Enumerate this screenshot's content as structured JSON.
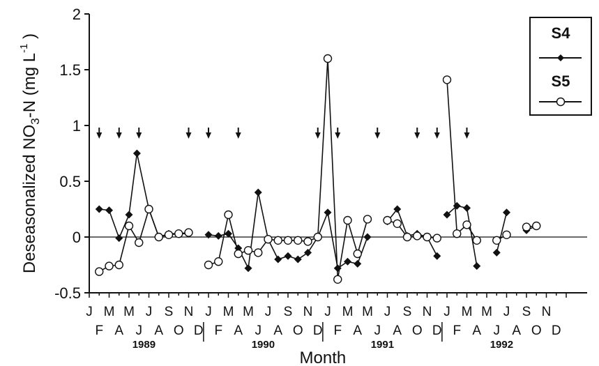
{
  "chart_data": {
    "type": "line",
    "ylabel_main": "Deseasonalized NO",
    "ylabel_sub": "3",
    "ylabel_rest": "-N (mg L",
    "ylabel_sup": "-1",
    "ylabel_close": " )",
    "xlabel": "Month",
    "ylim": [
      -0.5,
      2
    ],
    "yticks": [
      {
        "value": -0.5,
        "label": "-0.5"
      },
      {
        "value": 0,
        "label": "0"
      },
      {
        "value": 0.5,
        "label": "0.5"
      },
      {
        "value": 1,
        "label": "1"
      },
      {
        "value": 1.5,
        "label": "1.5"
      },
      {
        "value": 2,
        "label": "2"
      }
    ],
    "month_top": [
      "J",
      "M",
      "M",
      "J",
      "S",
      "N",
      "J",
      "M",
      "M",
      "J",
      "S",
      "N",
      "J",
      "M",
      "M",
      "J",
      "S",
      "N",
      "J",
      "M",
      "M",
      "J",
      "S",
      "N"
    ],
    "month_bottom": [
      "F",
      "A",
      "J",
      "A",
      "O",
      "D",
      "F",
      "A",
      "J",
      "A",
      "O",
      "D",
      "F",
      "A",
      "J",
      "A",
      "O",
      "D",
      "F",
      "A",
      "J",
      "A",
      "O",
      "D"
    ],
    "years": [
      "1989",
      "1990",
      "1991",
      "1992"
    ],
    "legend_position": "top-right",
    "zero_line": true,
    "arrows_month_index": [
      1,
      3,
      5,
      10,
      12,
      15,
      23,
      25,
      29,
      33,
      35,
      38
    ],
    "series": [
      {
        "name": "S4",
        "marker": "filled-diamond",
        "segments": [
          [
            [
              1,
              0.25
            ],
            [
              2,
              0.24
            ],
            [
              3,
              -0.01
            ],
            [
              4,
              0.2
            ],
            [
              4.8,
              0.75
            ],
            [
              6,
              0.25
            ],
            [
              7,
              0.0
            ],
            [
              8,
              0.03
            ],
            [
              9,
              0.03
            ],
            [
              10,
              0.03
            ]
          ],
          [
            [
              12,
              0.02
            ],
            [
              13,
              0.01
            ],
            [
              14,
              0.03
            ],
            [
              15,
              -0.1
            ],
            [
              16,
              -0.28
            ],
            [
              17,
              0.4
            ],
            [
              18,
              -0.02
            ],
            [
              19,
              -0.2
            ],
            [
              20,
              -0.17
            ],
            [
              21,
              -0.2
            ],
            [
              22,
              -0.14
            ],
            [
              23,
              0.0
            ],
            [
              24,
              0.22
            ],
            [
              25,
              -0.28
            ],
            [
              26,
              -0.22
            ],
            [
              27,
              -0.24
            ],
            [
              28,
              0.0
            ]
          ],
          [
            [
              30,
              0.14
            ],
            [
              31,
              0.25
            ],
            [
              32,
              0.01
            ],
            [
              33,
              0.03
            ],
            [
              34,
              0.0
            ],
            [
              35,
              -0.17
            ]
          ],
          [
            [
              36,
              0.2
            ],
            [
              37,
              0.28
            ],
            [
              38,
              0.26
            ],
            [
              39,
              -0.26
            ]
          ],
          [
            [
              41,
              -0.14
            ],
            [
              42,
              0.22
            ]
          ],
          [
            [
              44,
              0.06
            ],
            [
              45,
              0.1
            ]
          ]
        ]
      },
      {
        "name": "S5",
        "marker": "open-circle",
        "segments": [
          [
            [
              1,
              -0.31
            ],
            [
              2,
              -0.26
            ],
            [
              3,
              -0.25
            ],
            [
              4,
              0.1
            ],
            [
              5,
              -0.05
            ],
            [
              6,
              0.25
            ],
            [
              7,
              0.0
            ],
            [
              8,
              0.02
            ],
            [
              9,
              0.03
            ],
            [
              10,
              0.04
            ]
          ],
          [
            [
              12,
              -0.25
            ],
            [
              13,
              -0.22
            ],
            [
              14,
              0.2
            ],
            [
              15,
              -0.15
            ],
            [
              16,
              -0.12
            ],
            [
              17,
              -0.14
            ],
            [
              18,
              -0.02
            ],
            [
              19,
              -0.03
            ],
            [
              20,
              -0.03
            ],
            [
              21,
              -0.03
            ],
            [
              22,
              -0.04
            ],
            [
              23,
              0.0
            ],
            [
              24,
              1.6
            ],
            [
              25,
              -0.38
            ],
            [
              26,
              0.15
            ],
            [
              27,
              -0.15
            ],
            [
              28,
              0.16
            ]
          ],
          [
            [
              30,
              0.15
            ],
            [
              31,
              0.12
            ],
            [
              32,
              0.0
            ],
            [
              33,
              0.01
            ],
            [
              34,
              0.0
            ],
            [
              35,
              -0.01
            ]
          ],
          [
            [
              36,
              1.41
            ],
            [
              37,
              0.03
            ],
            [
              38,
              0.11
            ],
            [
              39,
              -0.03
            ]
          ],
          [
            [
              41,
              -0.03
            ],
            [
              42,
              0.02
            ]
          ],
          [
            [
              44,
              0.09
            ],
            [
              45,
              0.1
            ]
          ]
        ]
      }
    ]
  }
}
